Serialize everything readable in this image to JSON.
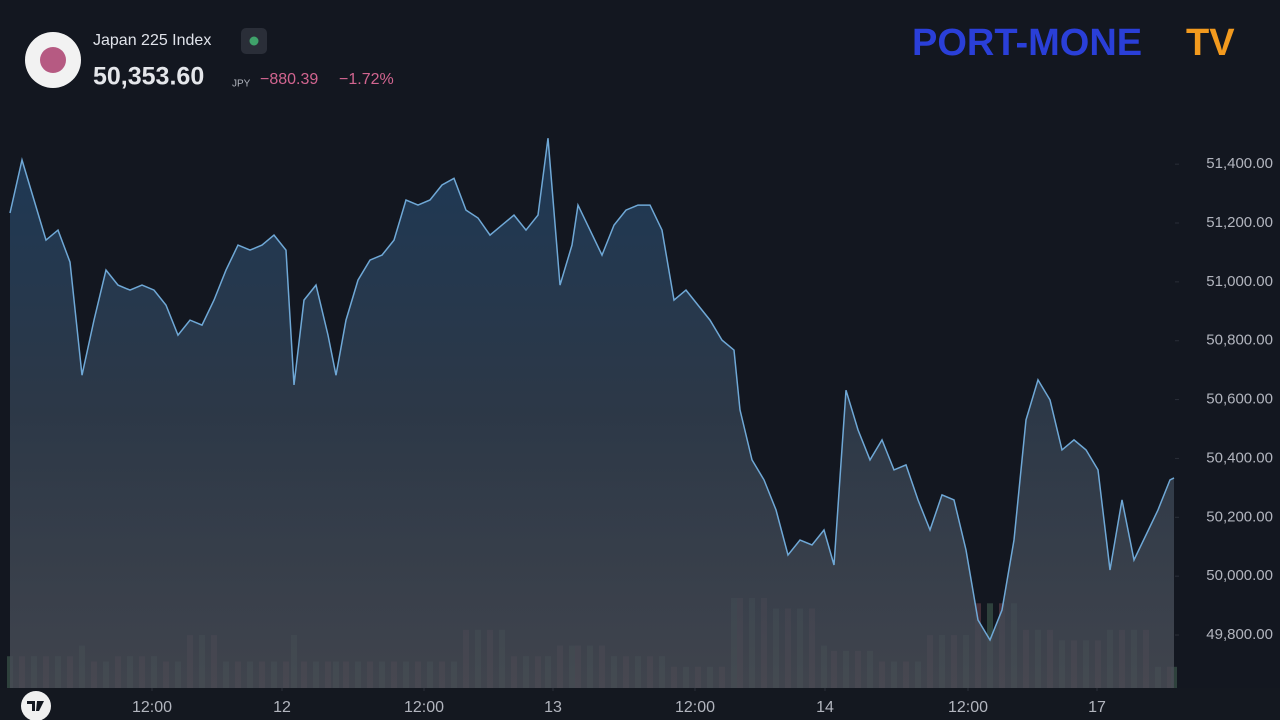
{
  "header": {
    "symbol": "Japan 225 Index",
    "price": "50,353.60",
    "currency": "JPY",
    "change": "−880.39",
    "change_pct": "−1.72%"
  },
  "logo": {
    "main": "PORT-MONE",
    "tv": "TV"
  },
  "chart_data": {
    "type": "area",
    "color": "#6fa8d6",
    "x": [
      10,
      22,
      34,
      46,
      58,
      70,
      82,
      94,
      106,
      118,
      130,
      142,
      154,
      166,
      178,
      190,
      202,
      214,
      226,
      238,
      250,
      262,
      274,
      286,
      294,
      304,
      316,
      328,
      336,
      346,
      358,
      370,
      382,
      394,
      406,
      418,
      430,
      442,
      454,
      466,
      478,
      490,
      502,
      514,
      526,
      538,
      548,
      560,
      572,
      578,
      590,
      602,
      614,
      626,
      638,
      650,
      662,
      674,
      686,
      698,
      710,
      722,
      734,
      740,
      752,
      764,
      776,
      788,
      800,
      812,
      824,
      834,
      846,
      858,
      870,
      882,
      894,
      906,
      918,
      930,
      942,
      954,
      966,
      978,
      990,
      1002,
      1014,
      1026,
      1038,
      1050,
      1062,
      1074,
      1086,
      1098,
      1110,
      1122,
      1134,
      1146,
      1158,
      1170,
      1174
    ],
    "values": [
      51234,
      51414,
      51278,
      51142,
      51176,
      51067,
      50683,
      50870,
      51040,
      50989,
      50972,
      50989,
      50972,
      50921,
      50819,
      50870,
      50853,
      50938,
      51040,
      51125,
      51108,
      51125,
      51159,
      51108,
      50650,
      50938,
      50989,
      50819,
      50683,
      50870,
      51006,
      51074,
      51091,
      51142,
      51278,
      51261,
      51278,
      51329,
      51352,
      51244,
      51217,
      51159,
      51193,
      51227,
      51176,
      51227,
      51488,
      50989,
      51125,
      51261,
      51176,
      51091,
      51193,
      51244,
      51261,
      51261,
      51176,
      50938,
      50972,
      50921,
      50870,
      50802,
      50768,
      50565,
      50395,
      50327,
      50225,
      50072,
      50123,
      50106,
      50157,
      50038,
      50632,
      50497,
      50395,
      50463,
      50361,
      50378,
      50259,
      50157,
      50276,
      50259,
      50089,
      49851,
      49783,
      49885,
      50123,
      50531,
      50667,
      50599,
      50429,
      50463,
      50429,
      50361,
      50021,
      50259,
      50055,
      50140,
      50225,
      50327,
      50334
    ],
    "volume": [
      30,
      30,
      30,
      30,
      30,
      30,
      40,
      25,
      25,
      30,
      30,
      30,
      30,
      25,
      25,
      50,
      50,
      50,
      25,
      25,
      25,
      25,
      25,
      25,
      50,
      25,
      25,
      25,
      25,
      25,
      25,
      25,
      25,
      25,
      25,
      25,
      25,
      25,
      25,
      55,
      55,
      55,
      55,
      30,
      30,
      30,
      30,
      40,
      40,
      40,
      40,
      40,
      30,
      30,
      30,
      30,
      30,
      20,
      20,
      20,
      20,
      20,
      85,
      85,
      85,
      85,
      75,
      75,
      75,
      75,
      40,
      35,
      35,
      35,
      35,
      25,
      25,
      25,
      25,
      50,
      50,
      50,
      50,
      80,
      80,
      80,
      80,
      55,
      55,
      55,
      45,
      45,
      45,
      45,
      55,
      55,
      55,
      55,
      20,
      20,
      20
    ],
    "xlim": [
      10,
      1175
    ],
    "ylim": [
      49620,
      51550
    ],
    "xticks": [
      {
        "value": 152,
        "label": "12:00"
      },
      {
        "value": 282,
        "label": "12"
      },
      {
        "value": 424,
        "label": "12:00"
      },
      {
        "value": 553,
        "label": "13"
      },
      {
        "value": 695,
        "label": "12:00"
      },
      {
        "value": 825,
        "label": "14"
      },
      {
        "value": 968,
        "label": "12:00"
      },
      {
        "value": 1097,
        "label": "17"
      }
    ],
    "yticks": [
      {
        "value": 51400,
        "label": "51,400.00"
      },
      {
        "value": 51200,
        "label": "51,200.00"
      },
      {
        "value": 51000,
        "label": "51,000.00"
      },
      {
        "value": 50800,
        "label": "50,800.00"
      },
      {
        "value": 50600,
        "label": "50,600.00"
      },
      {
        "value": 50400,
        "label": "50,400.00"
      },
      {
        "value": 50200,
        "label": "50,200.00"
      },
      {
        "value": 50000,
        "label": "50,000.00"
      },
      {
        "value": 49800,
        "label": "49,800.00"
      }
    ]
  }
}
